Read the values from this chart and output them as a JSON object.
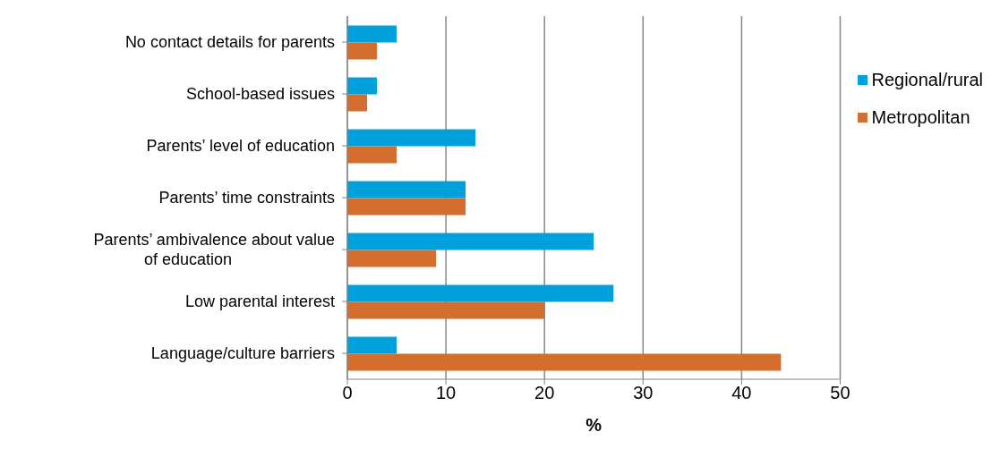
{
  "chart_data": {
    "type": "bar",
    "orientation": "horizontal",
    "xlabel": "%",
    "categories": [
      "No contact details for parents",
      "School-based issues",
      "Parents’ level of education",
      "Parents’ time constraints",
      "Parents’ ambivalence about value of education",
      "Low parental interest",
      "Language/culture barriers"
    ],
    "series": [
      {
        "name": "Regional/rural",
        "color": "#00a0dc",
        "values": [
          5,
          3,
          13,
          12,
          25,
          27,
          5
        ]
      },
      {
        "name": "Metropolitan",
        "color": "#d36e2e",
        "values": [
          3,
          2,
          5,
          12,
          9,
          20,
          44
        ]
      }
    ],
    "xlim": [
      0,
      50
    ],
    "xticks": [
      0,
      10,
      20,
      30,
      40,
      50
    ],
    "grid": "x",
    "legend": "top right"
  }
}
